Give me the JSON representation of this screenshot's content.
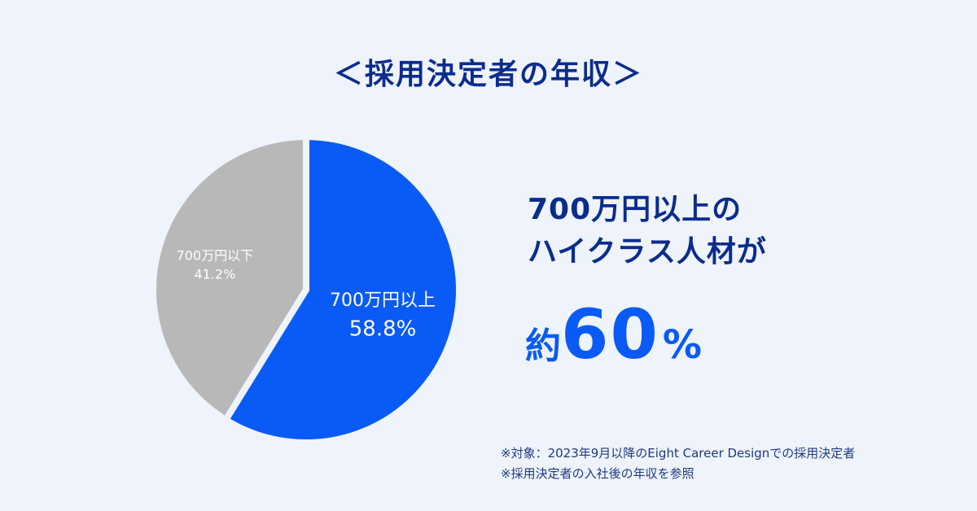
{
  "title": "＜採用決定者の年収＞",
  "headline": {
    "line1": "700万円以上の",
    "line2": "ハイクラス人材が"
  },
  "highlight": {
    "prefix": "約",
    "number": "60",
    "unit": "%"
  },
  "notes": [
    "※対象：2023年9月以降のEight Career Designでの採用決定者",
    "※採用決定者の入社後の年収を参照"
  ],
  "colors": {
    "background": "#EEF3FC",
    "primary_blue": "#0A5AF5",
    "navy": "#0B2C8C",
    "gray": "#B8B8B8"
  },
  "chart_data": {
    "type": "pie",
    "slices": [
      {
        "label": "700万円以上",
        "value": 58.8,
        "value_label": "58.8%",
        "color": "#0A5AF5"
      },
      {
        "label": "700万円以下",
        "value": 41.2,
        "value_label": "41.2%",
        "color": "#B8B8B8"
      }
    ]
  }
}
